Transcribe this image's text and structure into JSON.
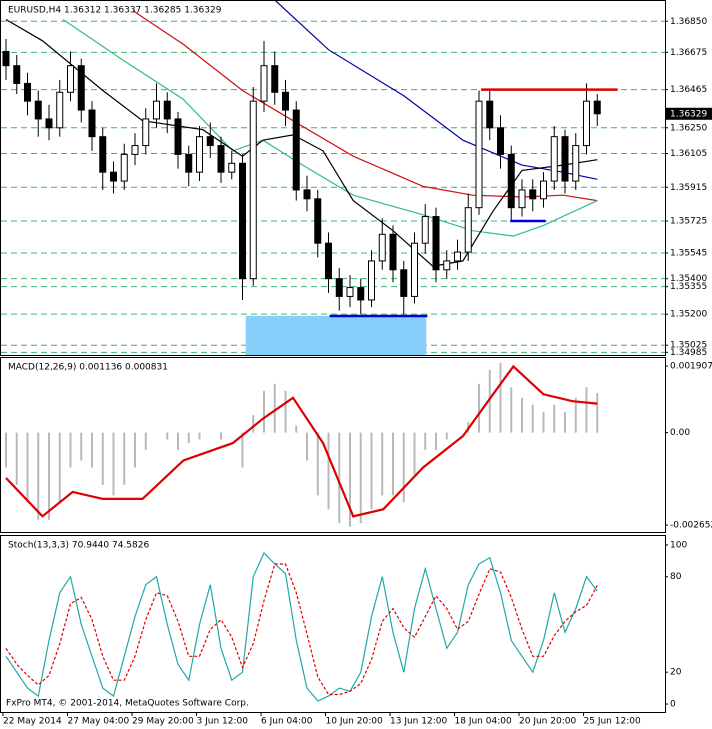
{
  "chart_data": [
    {
      "type": "candlestick",
      "title": "EURUSD,H4  1.36312 1.36337 1.36285 1.36329",
      "categories": [
        "22 May 2014",
        null,
        null,
        null,
        null,
        null,
        "27 May 04:00",
        null,
        null,
        null,
        null,
        null,
        "29 May 20:00",
        null,
        null,
        null,
        null,
        null,
        "3 Jun 12:00",
        null,
        null,
        null,
        null,
        null,
        "6 Jun 04:00",
        null,
        null,
        null,
        null,
        null,
        "10 Jun 20:00",
        null,
        null,
        null,
        null,
        null,
        "13 Jun 12:00",
        null,
        null,
        null,
        null,
        null,
        "18 Jun 04:00",
        null,
        null,
        null,
        null,
        null,
        "20 Jun 20:00",
        null,
        null,
        null,
        null,
        null,
        "25 Jun 12:00",
        null
      ],
      "open": [
        1.3668,
        1.366,
        1.365,
        1.364,
        1.363,
        1.3625,
        1.3645,
        1.366,
        1.3635,
        1.362,
        1.36,
        1.3595,
        1.361,
        1.3615,
        1.363,
        1.364,
        1.363,
        1.361,
        1.36,
        1.362,
        1.3615,
        1.36,
        1.3605,
        1.354,
        1.364,
        1.366,
        1.3645,
        1.3635,
        1.359,
        1.3585,
        1.356,
        1.354,
        1.353,
        1.3535,
        1.3528,
        1.355,
        1.3565,
        1.3545,
        1.353,
        1.356,
        1.3575,
        1.3545,
        1.355,
        1.3555,
        1.358,
        1.364,
        1.3625,
        1.361,
        1.358,
        1.359,
        1.3585,
        1.3595,
        1.362,
        1.3595,
        1.3615,
        1.364
      ],
      "high": [
        1.3675,
        1.3666,
        1.3656,
        1.3646,
        1.3638,
        1.3652,
        1.3668,
        1.3664,
        1.364,
        1.3625,
        1.3606,
        1.3616,
        1.3622,
        1.3636,
        1.365,
        1.3645,
        1.3634,
        1.3615,
        1.3626,
        1.3628,
        1.362,
        1.3612,
        1.361,
        1.3648,
        1.3674,
        1.3668,
        1.3652,
        1.364,
        1.3598,
        1.359,
        1.3566,
        1.3546,
        1.3542,
        1.354,
        1.3556,
        1.3574,
        1.357,
        1.355,
        1.3566,
        1.3582,
        1.358,
        1.3556,
        1.3562,
        1.3588,
        1.3646,
        1.3646,
        1.3632,
        1.3615,
        1.3596,
        1.3596,
        1.36,
        1.3626,
        1.3624,
        1.3622,
        1.365,
        1.3644
      ],
      "low": [
        1.3652,
        1.3644,
        1.3632,
        1.362,
        1.3618,
        1.362,
        1.364,
        1.3628,
        1.3612,
        1.359,
        1.3588,
        1.359,
        1.3604,
        1.361,
        1.3625,
        1.3622,
        1.3602,
        1.3592,
        1.3595,
        1.3608,
        1.3594,
        1.3596,
        1.3528,
        1.3536,
        1.3634,
        1.3638,
        1.3626,
        1.3584,
        1.3578,
        1.3552,
        1.3532,
        1.3522,
        1.3524,
        1.352,
        1.3524,
        1.3545,
        1.3538,
        1.352,
        1.3526,
        1.3554,
        1.3538,
        1.354,
        1.3545,
        1.355,
        1.3576,
        1.3618,
        1.3602,
        1.3572,
        1.3575,
        1.3578,
        1.358,
        1.359,
        1.3588,
        1.359,
        1.361,
        1.3626
      ],
      "close": [
        1.366,
        1.365,
        1.364,
        1.363,
        1.3625,
        1.3645,
        1.366,
        1.3635,
        1.362,
        1.36,
        1.3595,
        1.361,
        1.3615,
        1.363,
        1.364,
        1.363,
        1.361,
        1.36,
        1.362,
        1.3615,
        1.36,
        1.3605,
        1.354,
        1.364,
        1.366,
        1.3645,
        1.3635,
        1.359,
        1.3585,
        1.356,
        1.354,
        1.353,
        1.3535,
        1.3528,
        1.355,
        1.3565,
        1.3545,
        1.353,
        1.356,
        1.3575,
        1.3545,
        1.355,
        1.3555,
        1.358,
        1.364,
        1.3625,
        1.361,
        1.358,
        1.359,
        1.3585,
        1.3595,
        1.362,
        1.3595,
        1.3615,
        1.364,
        1.36329
      ],
      "up_color": "#ffffff",
      "down_color": "#000000",
      "overlays": [
        {
          "color": "#0000aa",
          "x": [
            25,
            30,
            37,
            42.5,
            48,
            51.8,
            55
          ],
          "values": [
            1.3697,
            1.3669,
            1.3643,
            1.3618,
            1.3604,
            1.36,
            1.3596
          ]
        },
        {
          "color": "#cc1010",
          "x": [
            11.8,
            16.5,
            22,
            26.7,
            32.3,
            38.8,
            43.4,
            48,
            51.8,
            55
          ],
          "values": [
            1.3691,
            1.3672,
            1.3646,
            1.3629,
            1.3609,
            1.3592,
            1.3587,
            1.3586,
            1.3587,
            1.3584
          ]
        },
        {
          "color": "#30c080",
          "x": [
            5.3,
            10.9,
            16.5,
            21.1,
            23.9,
            27.6,
            32.3,
            38.8,
            43.4,
            47.2,
            50,
            55
          ],
          "values": [
            1.3686,
            1.3663,
            1.3641,
            1.3612,
            1.3618,
            1.3604,
            1.3587,
            1.3576,
            1.3567,
            1.3564,
            1.357,
            1.3584
          ]
        },
        {
          "color": "#000000",
          "x": [
            0,
            3.4,
            9,
            12.7,
            18.3,
            22,
            23.9,
            26.7,
            29.5,
            32.3,
            36,
            39.7,
            42.5,
            45.3,
            48,
            51.8,
            55
          ],
          "values": [
            1.3686,
            1.3674,
            1.3646,
            1.3629,
            1.3624,
            1.3609,
            1.3618,
            1.3621,
            1.3612,
            1.3584,
            1.3567,
            1.3547,
            1.355,
            1.3578,
            1.3601,
            1.3604,
            1.3607
          ]
        }
      ],
      "lines": [
        {
          "color": "#e00000",
          "value": 1.36465,
          "start": 44.2,
          "end": 56.9
        },
        {
          "color": "#0000dd",
          "value": 1.35725,
          "start": 46.9,
          "end": 50.2
        },
        {
          "color": "#0000dd",
          "value": 1.3519,
          "start": 30.1,
          "end": 39.2
        }
      ],
      "zones": [
        {
          "color": "#87cefa",
          "top": 1.3519,
          "bottom": 1.3497,
          "start": 22.3,
          "end": 39.1
        }
      ],
      "ylim": [
        1.3497,
        1.3697
      ],
      "yticks": [
        {
          "value": 1.3685,
          "label": "1.36850"
        },
        1.36675,
        1.36465,
        {
          "value": 1.3625,
          "label": "1.36250"
        },
        1.36105,
        1.35915,
        1.35725,
        1.35545,
        {
          "value": 1.354,
          "label": "1.35400"
        },
        1.35355,
        {
          "value": 1.352,
          "label": "1.35200"
        },
        1.35025,
        1.34985
      ],
      "grid": true,
      "last_price": {
        "value": 1.36329,
        "label": "1.36329"
      }
    },
    {
      "type": "macd",
      "title": "MACD(12,26,9) 0.001136 0.000831",
      "color": "#b8b8b8",
      "values": [
        -0.001,
        -0.0015,
        -0.002,
        -0.0025,
        -0.0025,
        -0.002,
        -0.001,
        -0.0008,
        -0.001,
        -0.0015,
        -0.0018,
        -0.0015,
        -0.001,
        -0.0005,
        0,
        -0.0002,
        -0.0005,
        -0.0003,
        -0.0002,
        0,
        -0.0002,
        0,
        -0.001,
        0.0005,
        0.0012,
        0.0014,
        0.0012,
        0.0002,
        -0.0008,
        -0.0018,
        -0.0022,
        -0.0026,
        -0.0027,
        -0.0026,
        -0.0022,
        -0.0018,
        -0.0018,
        -0.002,
        -0.0012,
        -0.0005,
        -0.0005,
        -0.0002,
        0,
        0.0003,
        0.0014,
        0.0018,
        0.002,
        0.0013,
        0.001,
        0.0008,
        0.0006,
        0.0008,
        0.0006,
        0.001,
        0.0013,
        0.001136
      ],
      "signal": {
        "color": "#dd0000",
        "x": [
          0,
          3.4,
          6.2,
          9,
          12.7,
          16.5,
          21.1,
          23.9,
          26.7,
          29.5,
          32.3,
          35.1,
          38.8,
          42.5,
          45.3,
          47.2,
          50,
          52.7,
          55
        ],
        "values": [
          -0.0013,
          -0.0024,
          -0.0017,
          -0.0019,
          -0.0019,
          -0.0008,
          -0.0003,
          0.0004,
          0.001,
          -0.0003,
          -0.0024,
          -0.0022,
          -0.001,
          -0.0001,
          0.0011,
          0.0019,
          0.0011,
          0.0009,
          0.000831
        ]
      },
      "ylim": [
        -0.00285,
        0.00214
      ],
      "yticks": [
        0.001907,
        {
          "value": 0,
          "label": "0.00"
        },
        -0.002652
      ]
    },
    {
      "type": "stochastic",
      "title": "Stoch(13,3,3) 70.9440 74.5826",
      "main": {
        "color": "#20a8a8",
        "values": [
          30,
          20,
          10,
          5,
          40,
          70,
          80,
          50,
          30,
          10,
          5,
          30,
          55,
          75,
          80,
          50,
          25,
          15,
          50,
          75,
          35,
          15,
          20,
          80,
          95,
          88,
          82,
          40,
          10,
          2,
          5,
          10,
          8,
          20,
          55,
          80,
          45,
          20,
          60,
          85,
          60,
          35,
          45,
          75,
          88,
          92,
          70,
          40,
          30,
          20,
          40,
          70,
          45,
          60,
          80,
          70.944
        ]
      },
      "signal": {
        "color": "#dd0000",
        "values": [
          35,
          25,
          18,
          12,
          18,
          38,
          63,
          67,
          53,
          30,
          15,
          15,
          30,
          53,
          70,
          68,
          52,
          30,
          30,
          47,
          53,
          42,
          23,
          38,
          65,
          88,
          88,
          70,
          44,
          17,
          6,
          6,
          8,
          13,
          28,
          52,
          60,
          48,
          42,
          55,
          68,
          60,
          47,
          52,
          69,
          85,
          83,
          67,
          47,
          30,
          30,
          43,
          52,
          58,
          62,
          74.5826
        ]
      },
      "ylim": [
        -5,
        105.6
      ],
      "yticks": [
        0,
        20,
        80,
        100
      ],
      "annotation": "FxPro MT4, © 2001-2014, MetaQuotes Software Corp."
    }
  ]
}
